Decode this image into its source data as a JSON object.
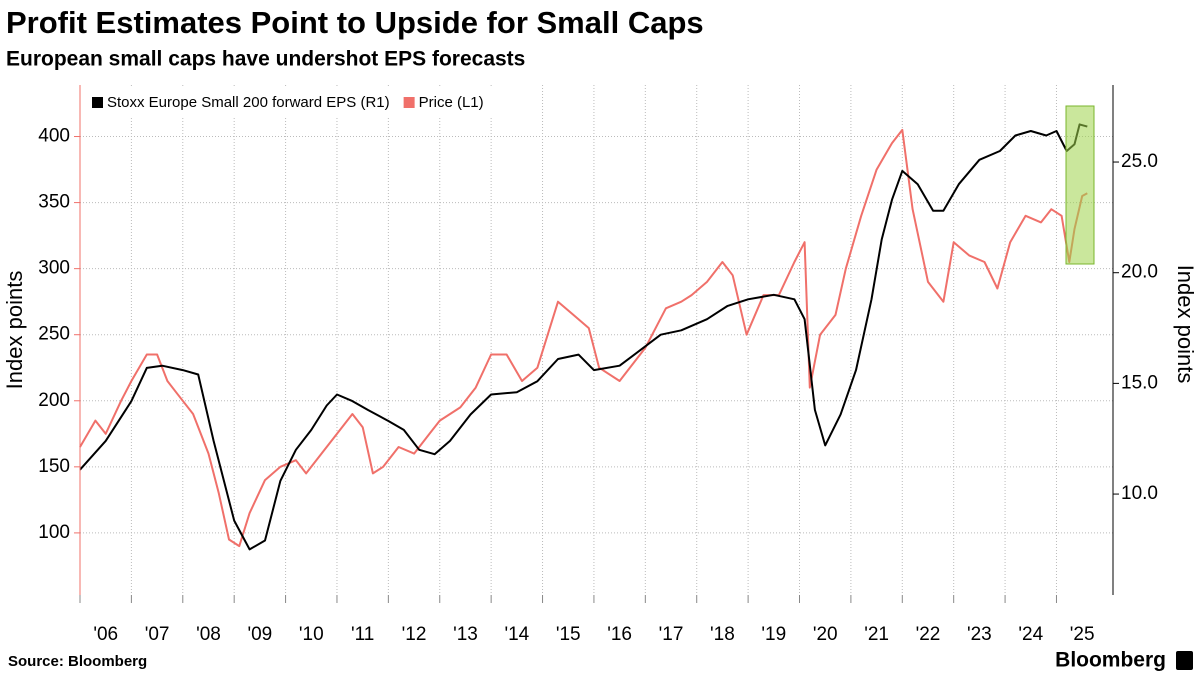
{
  "chart_data": {
    "type": "line",
    "title": "Profit Estimates Point to Upside for Small Caps",
    "subtitle": "European small caps have undershot EPS forecasts",
    "ylabel": "Index points",
    "y2label": "Index points",
    "xlim": [
      2006,
      2026.1
    ],
    "ylim": [
      53,
      439
    ],
    "y2lim": [
      5.44,
      28.48
    ],
    "xticks": [
      {
        "value": 2006,
        "label": "'06"
      },
      {
        "value": 2007,
        "label": "'07"
      },
      {
        "value": 2008,
        "label": "'08"
      },
      {
        "value": 2009,
        "label": "'09"
      },
      {
        "value": 2010,
        "label": "'10"
      },
      {
        "value": 2011,
        "label": "'11"
      },
      {
        "value": 2012,
        "label": "'12"
      },
      {
        "value": 2013,
        "label": "'13"
      },
      {
        "value": 2014,
        "label": "'14"
      },
      {
        "value": 2015,
        "label": "'15"
      },
      {
        "value": 2016,
        "label": "'16"
      },
      {
        "value": 2017,
        "label": "'17"
      },
      {
        "value": 2018,
        "label": "'18"
      },
      {
        "value": 2019,
        "label": "'19"
      },
      {
        "value": 2020,
        "label": "'20"
      },
      {
        "value": 2021,
        "label": "'21"
      },
      {
        "value": 2022,
        "label": "'22"
      },
      {
        "value": 2023,
        "label": "'23"
      },
      {
        "value": 2024,
        "label": "'24"
      },
      {
        "value": 2025,
        "label": "'25"
      }
    ],
    "yticks": [
      100,
      150,
      200,
      250,
      300,
      350,
      400
    ],
    "y2ticks": [
      {
        "value": 10,
        "label": "10.0"
      },
      {
        "value": 15,
        "label": "15.0"
      },
      {
        "value": 20,
        "label": "20.0"
      },
      {
        "value": 25,
        "label": "25.0"
      }
    ],
    "grid": true,
    "series": [
      {
        "name": "Stoxx Europe Small 200 forward EPS (R1)",
        "color": "#000000",
        "axis": "y2",
        "x": [
          2006.0,
          2006.5,
          2007.0,
          2007.3,
          2007.6,
          2008.0,
          2008.3,
          2008.6,
          2008.8,
          2009.0,
          2009.3,
          2009.6,
          2009.9,
          2010.2,
          2010.5,
          2010.8,
          2011.0,
          2011.3,
          2011.6,
          2012.0,
          2012.3,
          2012.6,
          2012.9,
          2013.2,
          2013.6,
          2014.0,
          2014.5,
          2014.9,
          2015.3,
          2015.7,
          2016.0,
          2016.5,
          2016.9,
          2017.3,
          2017.7,
          2018.2,
          2018.6,
          2019.0,
          2019.5,
          2019.9,
          2020.1,
          2020.3,
          2020.5,
          2020.8,
          2021.1,
          2021.4,
          2021.6,
          2021.8,
          2022.0,
          2022.3,
          2022.6,
          2022.8,
          2023.1,
          2023.5,
          2023.9,
          2024.2,
          2024.5,
          2024.8,
          2025.0,
          2025.2,
          2025.35,
          2025.45,
          2025.6
        ],
        "values": [
          11.1,
          12.4,
          14.2,
          15.7,
          15.8,
          15.6,
          15.4,
          12.4,
          10.6,
          8.8,
          7.5,
          7.9,
          10.6,
          12.0,
          12.9,
          14.0,
          14.5,
          14.2,
          13.8,
          13.3,
          12.9,
          12.0,
          11.8,
          12.4,
          13.6,
          14.5,
          14.6,
          15.1,
          16.1,
          16.3,
          15.6,
          15.8,
          16.5,
          17.2,
          17.4,
          17.9,
          18.5,
          18.8,
          19.0,
          18.8,
          17.9,
          13.8,
          12.2,
          13.6,
          15.6,
          18.8,
          21.5,
          23.3,
          24.6,
          24.0,
          22.8,
          22.8,
          24.0,
          25.1,
          25.5,
          26.2,
          26.4,
          26.2,
          26.4,
          25.5,
          25.8,
          26.7,
          26.6
        ]
      },
      {
        "name": "Price (L1)",
        "color": "#f0706a",
        "axis": "y",
        "x": [
          2006.0,
          2006.3,
          2006.5,
          2006.8,
          2007.0,
          2007.3,
          2007.5,
          2007.7,
          2007.9,
          2008.2,
          2008.5,
          2008.7,
          2008.9,
          2009.1,
          2009.3,
          2009.6,
          2009.9,
          2010.2,
          2010.4,
          2010.7,
          2011.0,
          2011.3,
          2011.5,
          2011.7,
          2011.9,
          2012.2,
          2012.5,
          2012.8,
          2013.0,
          2013.4,
          2013.7,
          2014.0,
          2014.3,
          2014.6,
          2014.9,
          2015.3,
          2015.6,
          2015.9,
          2016.1,
          2016.5,
          2016.8,
          2017.0,
          2017.4,
          2017.7,
          2017.9,
          2018.2,
          2018.5,
          2018.7,
          2018.97,
          2019.3,
          2019.6,
          2019.9,
          2020.1,
          2020.2,
          2020.4,
          2020.7,
          2020.9,
          2021.2,
          2021.5,
          2021.8,
          2022.0,
          2022.2,
          2022.5,
          2022.8,
          2023.0,
          2023.3,
          2023.6,
          2023.85,
          2024.1,
          2024.4,
          2024.7,
          2024.9,
          2025.1,
          2025.25,
          2025.35,
          2025.5,
          2025.6
        ],
        "values": [
          165,
          185,
          175,
          200,
          215,
          235,
          235,
          215,
          205,
          190,
          160,
          130,
          95,
          90,
          115,
          140,
          150,
          155,
          145,
          160,
          175,
          190,
          180,
          145,
          150,
          165,
          160,
          175,
          185,
          195,
          210,
          235,
          235,
          215,
          225,
          275,
          265,
          255,
          225,
          215,
          230,
          240,
          270,
          275,
          280,
          290,
          305,
          295,
          250,
          280,
          280,
          305,
          320,
          210,
          250,
          265,
          300,
          340,
          375,
          395,
          405,
          345,
          290,
          275,
          320,
          310,
          305,
          285,
          320,
          340,
          335,
          345,
          340,
          305,
          330,
          355,
          357
        ]
      }
    ]
  },
  "source": "Source: Bloomberg",
  "brand": "Bloomberg"
}
